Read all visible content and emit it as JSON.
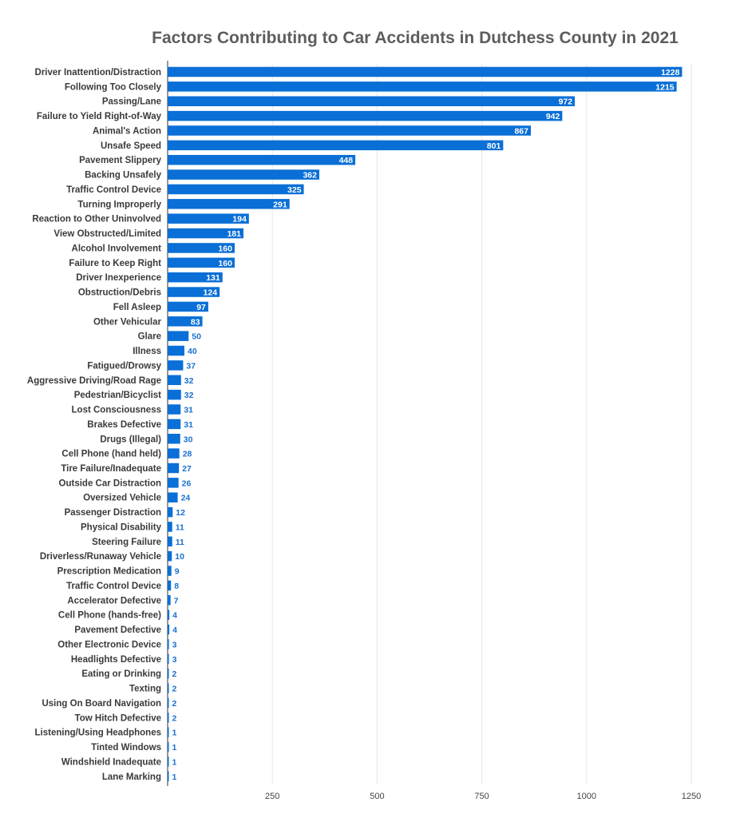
{
  "chart_data": {
    "type": "bar",
    "orientation": "horizontal",
    "title": "Factors Contributing to Car Accidents in Dutchess County in 2021",
    "bar_color": "#0a6fd6",
    "value_color_outside": "#1a6fd0",
    "grid": true,
    "xlim": [
      0,
      1250
    ],
    "xticks": [
      250,
      500,
      750,
      1000,
      1250
    ],
    "categories": [
      "Driver Inattention/Distraction",
      "Following Too Closely",
      "Passing/Lane",
      "Failure to Yield Right-of-Way",
      "Animal's Action",
      "Unsafe Speed",
      "Pavement Slippery",
      "Backing Unsafely",
      "Traffic Control Device",
      "Turning Improperly",
      "Reaction to Other Uninvolved",
      "View Obstructed/Limited",
      "Alcohol Involvement",
      "Failure to Keep Right",
      "Driver Inexperience",
      "Obstruction/Debris",
      "Fell Asleep",
      "Other Vehicular",
      "Glare",
      "Illness",
      "Fatigued/Drowsy",
      "Aggressive Driving/Road Rage",
      "Pedestrian/Bicyclist",
      "Lost Consciousness",
      "Brakes Defective",
      "Drugs (Illegal)",
      "Cell Phone (hand held)",
      "Tire Failure/Inadequate",
      "Outside Car Distraction",
      "Oversized Vehicle",
      "Passenger Distraction",
      "Physical Disability",
      "Steering Failure",
      "Driverless/Runaway Vehicle",
      "Prescription Medication",
      "Traffic Control Device",
      "Accelerator Defective",
      "Cell Phone (hands-free)",
      "Pavement Defective",
      "Other Electronic Device",
      "Headlights Defective",
      "Eating or Drinking",
      "Texting",
      "Using On Board Navigation",
      "Tow Hitch Defective",
      "Listening/Using Headphones",
      "Tinted Windows",
      "Windshield Inadequate",
      "Lane Marking"
    ],
    "values": [
      1228,
      1215,
      972,
      942,
      867,
      801,
      448,
      362,
      325,
      291,
      194,
      181,
      160,
      160,
      131,
      124,
      97,
      83,
      50,
      40,
      37,
      32,
      32,
      31,
      31,
      30,
      28,
      27,
      26,
      24,
      12,
      11,
      11,
      10,
      9,
      8,
      7,
      4,
      4,
      3,
      3,
      2,
      2,
      2,
      2,
      1,
      1,
      1,
      1
    ]
  }
}
